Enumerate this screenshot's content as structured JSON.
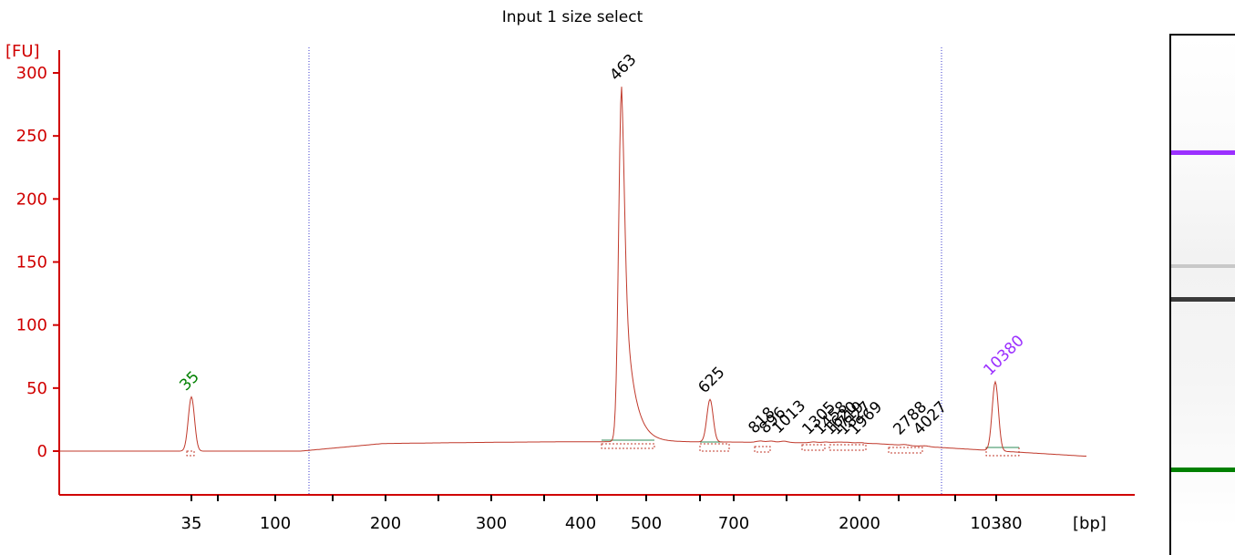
{
  "chart_data": {
    "type": "line",
    "title": "Input 1 size select",
    "y_unit_label": "[FU]",
    "x_unit_label": "[bp]",
    "ylim": [
      -35,
      315
    ],
    "y_ticks": [
      0,
      50,
      100,
      150,
      200,
      250,
      300
    ],
    "x_tick_labels": [
      "35",
      "100",
      "200",
      "300",
      "400",
      "500",
      "700",
      "2000",
      "10380"
    ],
    "grid": false,
    "legend": "none",
    "colors": {
      "trace": "#c0392b",
      "axis": "#d00000",
      "lower_marker": "#008000",
      "upper_marker": "#9b30ff",
      "baseline": "#2e8b57",
      "dashed_line": "#3a3acc"
    },
    "peaks": [
      {
        "label": "35",
        "bp": 35,
        "fu": 43,
        "color": "#008000"
      },
      {
        "label": "463",
        "bp": 463,
        "fu": 289,
        "color": "#000000"
      },
      {
        "label": "625",
        "bp": 625,
        "fu": 41,
        "color": "#000000"
      },
      {
        "label": "818",
        "bp": 818,
        "fu": 9,
        "color": "#000000"
      },
      {
        "label": "896",
        "bp": 896,
        "fu": 9,
        "color": "#000000"
      },
      {
        "label": "1013",
        "bp": 1013,
        "fu": 9,
        "color": "#000000"
      },
      {
        "label": "1305",
        "bp": 1305,
        "fu": 8,
        "color": "#000000"
      },
      {
        "label": "1458",
        "bp": 1458,
        "fu": 8,
        "color": "#000000"
      },
      {
        "label": "1620",
        "bp": 1620,
        "fu": 7,
        "color": "#000000"
      },
      {
        "label": "1719",
        "bp": 1719,
        "fu": 7,
        "color": "#000000"
      },
      {
        "label": "1827",
        "bp": 1827,
        "fu": 7,
        "color": "#000000"
      },
      {
        "label": "1969",
        "bp": 1969,
        "fu": 6,
        "color": "#000000"
      },
      {
        "label": "2788",
        "bp": 2788,
        "fu": 4,
        "color": "#000000"
      },
      {
        "label": "4027",
        "bp": 4027,
        "fu": 3,
        "color": "#000000"
      },
      {
        "label": "10380",
        "bp": 10380,
        "fu": 55,
        "color": "#9b30ff"
      }
    ]
  }
}
